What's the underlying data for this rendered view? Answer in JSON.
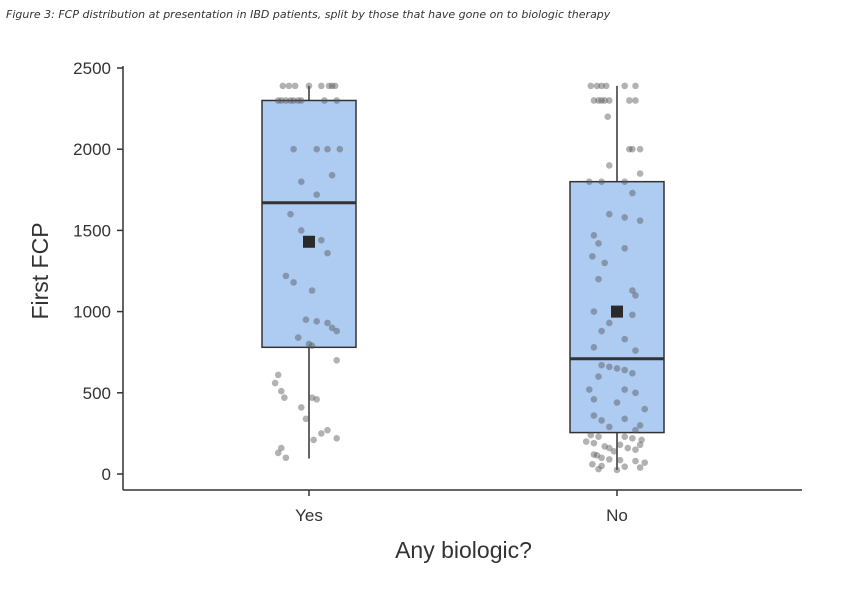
{
  "caption": "Figure 3: FCP distribution at presentation in IBD patients, split by those that have gone on to biologic therapy",
  "chart_data": {
    "type": "box",
    "xlabel": "Any biologic?",
    "ylabel": "First FCP",
    "ylim": [
      0,
      2500
    ],
    "yticks": [
      0,
      500,
      1000,
      1500,
      2000,
      2500
    ],
    "categories": [
      "Yes",
      "No"
    ],
    "colors": {
      "box_fill": "#aecbf2",
      "box_stroke": "#333333",
      "point": "#555555",
      "mean": "#2a2a2a"
    },
    "groups": [
      {
        "category": "Yes",
        "whisker_low": 95,
        "q1": 780,
        "median": 1670,
        "q3": 2300,
        "whisker_high": 2390,
        "mean": 1430,
        "points": [
          [
            -0.17,
            2390
          ],
          [
            -0.13,
            2390
          ],
          [
            -0.09,
            2390
          ],
          [
            0.0,
            2390
          ],
          [
            0.08,
            2390
          ],
          [
            0.13,
            2390
          ],
          [
            0.15,
            2390
          ],
          [
            0.17,
            2390
          ],
          [
            -0.2,
            2300
          ],
          [
            -0.18,
            2300
          ],
          [
            -0.15,
            2300
          ],
          [
            -0.12,
            2300
          ],
          [
            -0.1,
            2300
          ],
          [
            -0.07,
            2300
          ],
          [
            -0.05,
            2300
          ],
          [
            0.1,
            2300
          ],
          [
            0.18,
            2300
          ],
          [
            -0.1,
            2000
          ],
          [
            0.05,
            2000
          ],
          [
            0.12,
            2000
          ],
          [
            0.2,
            2000
          ],
          [
            0.15,
            1840
          ],
          [
            -0.05,
            1800
          ],
          [
            0.05,
            1720
          ],
          [
            -0.12,
            1600
          ],
          [
            -0.05,
            1500
          ],
          [
            0.08,
            1440
          ],
          [
            0.12,
            1360
          ],
          [
            -0.15,
            1220
          ],
          [
            -0.1,
            1180
          ],
          [
            0.02,
            1130
          ],
          [
            -0.02,
            950
          ],
          [
            0.05,
            940
          ],
          [
            0.12,
            930
          ],
          [
            0.15,
            900
          ],
          [
            0.18,
            880
          ],
          [
            -0.07,
            840
          ],
          [
            0.0,
            800
          ],
          [
            0.02,
            790
          ],
          [
            0.18,
            700
          ],
          [
            -0.2,
            610
          ],
          [
            -0.22,
            560
          ],
          [
            -0.18,
            510
          ],
          [
            -0.16,
            470
          ],
          [
            0.02,
            470
          ],
          [
            0.05,
            460
          ],
          [
            -0.05,
            410
          ],
          [
            -0.02,
            340
          ],
          [
            0.12,
            270
          ],
          [
            0.08,
            250
          ],
          [
            0.18,
            220
          ],
          [
            0.03,
            210
          ],
          [
            -0.18,
            160
          ],
          [
            -0.2,
            130
          ],
          [
            -0.15,
            100
          ]
        ]
      },
      {
        "category": "No",
        "whisker_low": 25,
        "q1": 255,
        "median": 710,
        "q3": 1800,
        "whisker_high": 2390,
        "mean": 1000,
        "points": [
          [
            -0.17,
            2390
          ],
          [
            -0.13,
            2390
          ],
          [
            -0.1,
            2390
          ],
          [
            -0.07,
            2390
          ],
          [
            0.05,
            2390
          ],
          [
            0.12,
            2390
          ],
          [
            -0.15,
            2300
          ],
          [
            -0.12,
            2300
          ],
          [
            -0.1,
            2300
          ],
          [
            -0.08,
            2300
          ],
          [
            -0.05,
            2300
          ],
          [
            0.08,
            2300
          ],
          [
            0.12,
            2300
          ],
          [
            -0.06,
            2200
          ],
          [
            0.08,
            2000
          ],
          [
            0.1,
            2000
          ],
          [
            0.15,
            2000
          ],
          [
            -0.05,
            1900
          ],
          [
            0.15,
            1850
          ],
          [
            -0.18,
            1800
          ],
          [
            -0.1,
            1800
          ],
          [
            0.05,
            1800
          ],
          [
            0.1,
            1730
          ],
          [
            -0.05,
            1600
          ],
          [
            0.05,
            1580
          ],
          [
            0.15,
            1560
          ],
          [
            -0.15,
            1470
          ],
          [
            -0.12,
            1420
          ],
          [
            0.05,
            1390
          ],
          [
            -0.16,
            1340
          ],
          [
            -0.08,
            1300
          ],
          [
            -0.12,
            1200
          ],
          [
            0.1,
            1130
          ],
          [
            0.12,
            1100
          ],
          [
            -0.15,
            1000
          ],
          [
            0.1,
            980
          ],
          [
            -0.05,
            930
          ],
          [
            -0.1,
            880
          ],
          [
            0.05,
            830
          ],
          [
            -0.15,
            780
          ],
          [
            0.12,
            760
          ],
          [
            -0.1,
            670
          ],
          [
            -0.05,
            660
          ],
          [
            0.0,
            650
          ],
          [
            0.05,
            640
          ],
          [
            0.1,
            620
          ],
          [
            -0.12,
            600
          ],
          [
            -0.18,
            520
          ],
          [
            0.05,
            520
          ],
          [
            0.12,
            500
          ],
          [
            -0.15,
            460
          ],
          [
            0.0,
            440
          ],
          [
            0.18,
            400
          ],
          [
            -0.15,
            360
          ],
          [
            0.05,
            340
          ],
          [
            -0.1,
            330
          ],
          [
            0.15,
            300
          ],
          [
            -0.05,
            290
          ],
          [
            0.12,
            270
          ],
          [
            -0.17,
            240
          ],
          [
            -0.12,
            230
          ],
          [
            0.05,
            230
          ],
          [
            0.1,
            220
          ],
          [
            0.16,
            210
          ],
          [
            -0.2,
            200
          ],
          [
            -0.15,
            190
          ],
          [
            0.02,
            180
          ],
          [
            0.15,
            180
          ],
          [
            -0.08,
            170
          ],
          [
            -0.05,
            160
          ],
          [
            0.07,
            160
          ],
          [
            0.12,
            150
          ],
          [
            -0.02,
            140
          ],
          [
            -0.15,
            120
          ],
          [
            -0.13,
            115
          ],
          [
            -0.1,
            100
          ],
          [
            -0.05,
            90
          ],
          [
            0.02,
            85
          ],
          [
            0.12,
            80
          ],
          [
            0.18,
            70
          ],
          [
            -0.16,
            60
          ],
          [
            -0.1,
            50
          ],
          [
            0.05,
            45
          ],
          [
            0.15,
            40
          ],
          [
            -0.12,
            30
          ],
          [
            0.0,
            25
          ]
        ]
      }
    ]
  }
}
